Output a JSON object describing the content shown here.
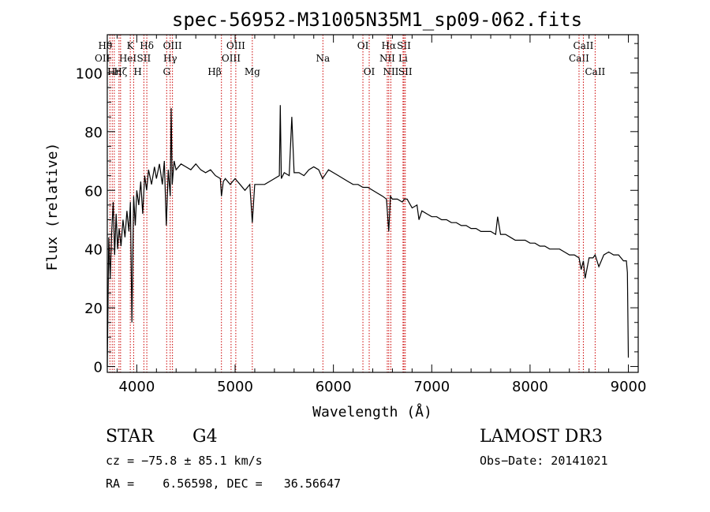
{
  "chart_data": {
    "type": "line",
    "title": "spec-56952-M31005N35M1_sp09-062.fits",
    "xlabel": "Wavelength (Å)",
    "ylabel": "Flux (relative)",
    "xlim": [
      3700,
      9100
    ],
    "ylim": [
      -2,
      113
    ],
    "x_ticks": [
      4000,
      5000,
      6000,
      7000,
      8000,
      9000
    ],
    "y_ticks": [
      0,
      20,
      40,
      60,
      80,
      100
    ],
    "x_tick_labels": [
      "4000",
      "5000",
      "6000",
      "7000",
      "8000",
      "9000"
    ],
    "y_tick_labels": [
      "0",
      "20",
      "40",
      "60",
      "80",
      "100"
    ],
    "line_color": "#000000",
    "marker_color": "#cc0000",
    "spectrum": {
      "x": [
        3700,
        3715,
        3730,
        3745,
        3760,
        3775,
        3790,
        3805,
        3820,
        3840,
        3860,
        3880,
        3900,
        3920,
        3935,
        3950,
        3968,
        3985,
        4000,
        4020,
        4040,
        4060,
        4080,
        4100,
        4120,
        4150,
        4180,
        4200,
        4230,
        4260,
        4280,
        4300,
        4320,
        4340,
        4350,
        4360,
        4380,
        4400,
        4450,
        4500,
        4550,
        4600,
        4650,
        4700,
        4750,
        4800,
        4850,
        4861,
        4880,
        4900,
        4950,
        5000,
        5050,
        5100,
        5150,
        5175,
        5200,
        5250,
        5300,
        5350,
        5400,
        5450,
        5460,
        5470,
        5500,
        5550,
        5577,
        5600,
        5650,
        5700,
        5750,
        5800,
        5850,
        5890,
        5950,
        6000,
        6050,
        6100,
        6150,
        6200,
        6250,
        6300,
        6350,
        6400,
        6450,
        6500,
        6540,
        6563,
        6580,
        6600,
        6650,
        6700,
        6720,
        6750,
        6800,
        6850,
        6870,
        6900,
        6950,
        7000,
        7050,
        7100,
        7150,
        7200,
        7250,
        7300,
        7350,
        7400,
        7450,
        7500,
        7550,
        7600,
        7650,
        7670,
        7700,
        7750,
        7800,
        7850,
        7900,
        7950,
        8000,
        8050,
        8100,
        8150,
        8200,
        8250,
        8300,
        8350,
        8400,
        8450,
        8498,
        8520,
        8542,
        8560,
        8600,
        8640,
        8662,
        8700,
        8750,
        8800,
        8850,
        8900,
        8950,
        8980,
        8990,
        9000
      ],
      "y": [
        0,
        44,
        30,
        46,
        56,
        38,
        52,
        40,
        47,
        41,
        50,
        44,
        53,
        46,
        56,
        15,
        58,
        48,
        60,
        55,
        63,
        52,
        65,
        60,
        67,
        62,
        68,
        64,
        69,
        62,
        70,
        48,
        67,
        58,
        88,
        62,
        70,
        67,
        69,
        68,
        67,
        69,
        67,
        66,
        67,
        65,
        64,
        58,
        63,
        64,
        62,
        64,
        62,
        60,
        62,
        49,
        62,
        62,
        62,
        63,
        64,
        65,
        89,
        64,
        66,
        65,
        85,
        66,
        66,
        65,
        67,
        68,
        67,
        64,
        67,
        66,
        65,
        64,
        63,
        62,
        62,
        61,
        61,
        60,
        59,
        58,
        57,
        46,
        58,
        57,
        57,
        56,
        57,
        57,
        54,
        55,
        50,
        53,
        52,
        51,
        51,
        50,
        50,
        49,
        49,
        48,
        48,
        47,
        47,
        46,
        46,
        46,
        45,
        51,
        45,
        45,
        44,
        43,
        43,
        43,
        42,
        42,
        41,
        41,
        40,
        40,
        40,
        39,
        38,
        38,
        37,
        33,
        36,
        30,
        37,
        37,
        38,
        34,
        38,
        39,
        38,
        38,
        36,
        36,
        32,
        3
      ]
    },
    "emission_lines": [
      {
        "label": "OII",
        "x": 3727,
        "row": 2,
        "align": "end"
      },
      {
        "label": "Hθ",
        "x": 3750,
        "row": 1,
        "align": "end"
      },
      {
        "label": "Hη",
        "x": 3771,
        "row": 3,
        "align": "middle"
      },
      {
        "label": "HeI",
        "x": 3819,
        "row": 2,
        "align": "start"
      },
      {
        "label": "Hζ",
        "x": 3835,
        "row": 3,
        "align": "middle"
      },
      {
        "label": "K",
        "x": 3934,
        "row": 1,
        "align": "middle"
      },
      {
        "label": "SII",
        "x": 4072,
        "row": 2,
        "align": "middle"
      },
      {
        "label": "H",
        "x": 3968,
        "row": 3,
        "align": "start"
      },
      {
        "label": "Hδ",
        "x": 4102,
        "row": 1,
        "align": "middle"
      },
      {
        "label": "Hγ",
        "x": 4340,
        "row": 2,
        "align": "middle"
      },
      {
        "label": "G",
        "x": 4304,
        "row": 3,
        "align": "middle"
      },
      {
        "label": "OIII",
        "x": 4363,
        "row": 1,
        "align": "middle"
      },
      {
        "label": "Hβ",
        "x": 4861,
        "row": 3,
        "align": "end"
      },
      {
        "label": "OIII",
        "x": 4959,
        "row": 2,
        "align": "middle"
      },
      {
        "label": "OIII",
        "x": 5007,
        "row": 1,
        "align": "middle"
      },
      {
        "label": "Mg",
        "x": 5175,
        "row": 3,
        "align": "middle"
      },
      {
        "label": "Na",
        "x": 5893,
        "row": 2,
        "align": "middle"
      },
      {
        "label": "OI",
        "x": 6300,
        "row": 1,
        "align": "middle"
      },
      {
        "label": "OI",
        "x": 6364,
        "row": 3,
        "align": "middle"
      },
      {
        "label": "NII",
        "x": 6548,
        "row": 2,
        "align": "middle"
      },
      {
        "label": "Hα",
        "x": 6563,
        "row": 1,
        "align": "middle"
      },
      {
        "label": "NII",
        "x": 6584,
        "row": 3,
        "align": "middle"
      },
      {
        "label": "SII",
        "x": 6717,
        "row": 1,
        "align": "middle"
      },
      {
        "label": "Li",
        "x": 6708,
        "row": 2,
        "align": "middle"
      },
      {
        "label": "SII",
        "x": 6731,
        "row": 3,
        "align": "middle"
      },
      {
        "label": "CaII",
        "x": 8498,
        "row": 2,
        "align": "middle"
      },
      {
        "label": "CaII",
        "x": 8542,
        "row": 1,
        "align": "middle"
      },
      {
        "label": "CaII",
        "x": 8662,
        "row": 3,
        "align": "middle"
      }
    ]
  },
  "info": {
    "class_label": "STAR",
    "subclass": "G4",
    "survey": "LAMOST DR3",
    "cz_text": "cz = −75.8 ± 85.1 km/s",
    "obs_date": "Obs−Date: 20141021",
    "coords_text": "RA =    6.56598, DEC =   36.56647"
  }
}
